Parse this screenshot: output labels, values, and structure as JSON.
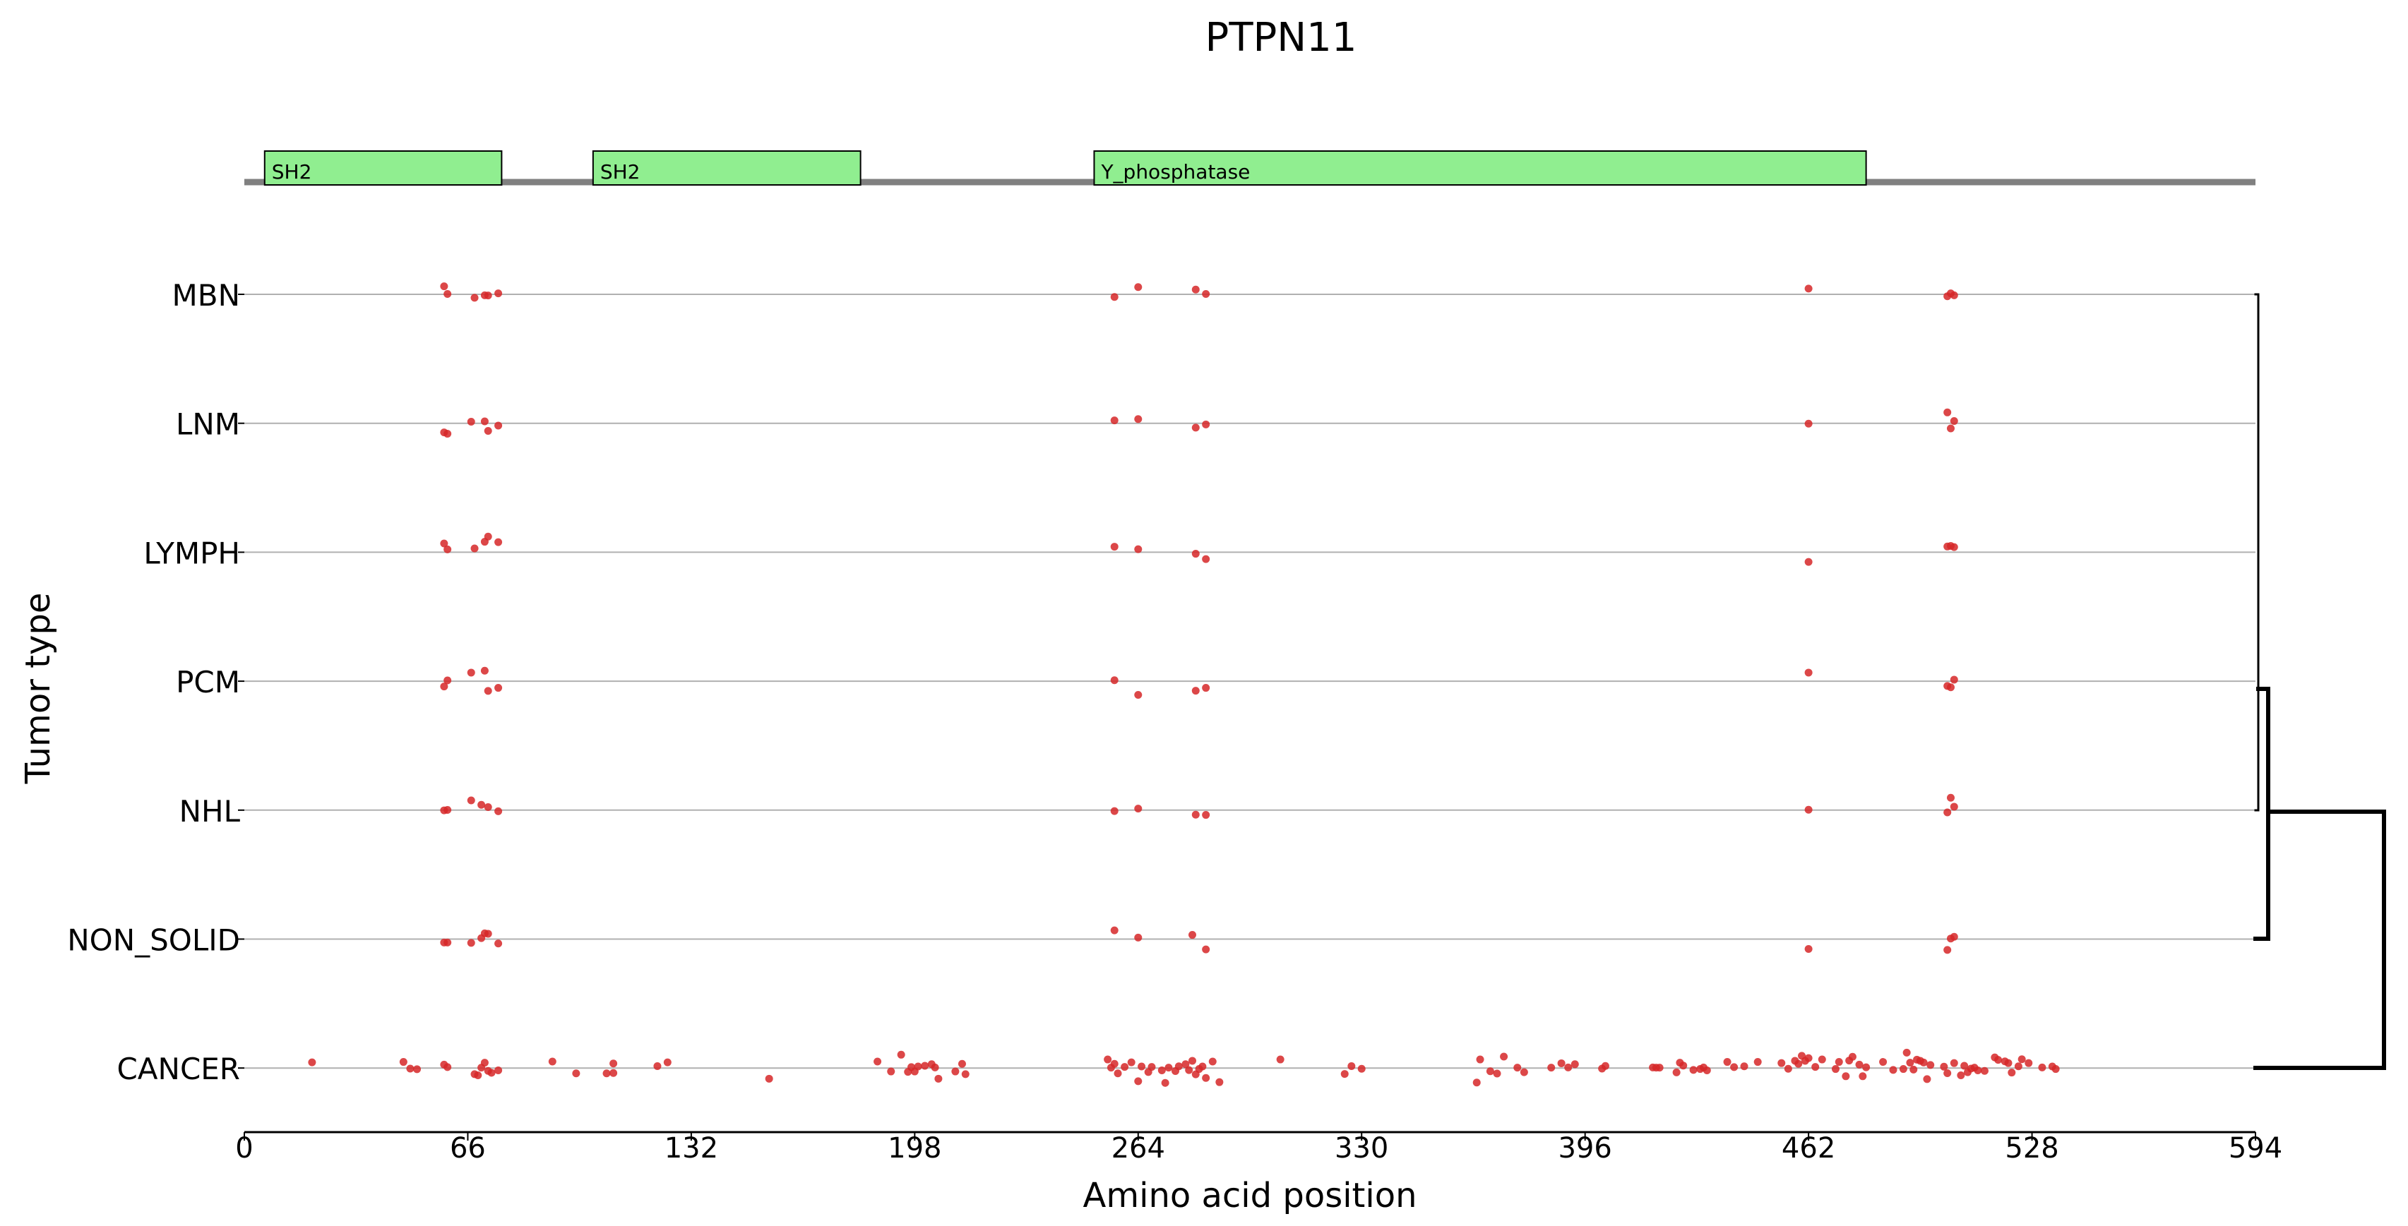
{
  "chart_data": {
    "type": "scatter",
    "title": "PTPN11",
    "xlabel": "Amino acid position",
    "ylabel": "Tumor type",
    "xlim": [
      0,
      594
    ],
    "x_ticks": [
      0,
      66,
      132,
      198,
      264,
      330,
      396,
      462,
      528,
      594
    ],
    "grid": "horizontal lines at each tumor type",
    "marker_color": "#d62728",
    "protein_length": 594,
    "domains": [
      {
        "name": "SH2",
        "start": 6,
        "end": 76
      },
      {
        "name": "SH2",
        "start": 103,
        "end": 182
      },
      {
        "name": "Y_phosphatase",
        "start": 251,
        "end": 479
      }
    ],
    "domain_color": "#90ee90",
    "categories": [
      "MBN",
      "LNM",
      "LYMPH",
      "PCM",
      "NHL",
      "NON_SOLID",
      "CANCER"
    ],
    "series": [
      {
        "category": "MBN",
        "points": [
          [
            59,
            0.42
          ],
          [
            60,
            0.02
          ],
          [
            68,
            -0.18
          ],
          [
            71,
            -0.05
          ],
          [
            72,
            -0.06
          ],
          [
            75,
            0.05
          ],
          [
            257,
            -0.14
          ],
          [
            264,
            0.38
          ],
          [
            281,
            0.25
          ],
          [
            284,
            0.02
          ],
          [
            462,
            0.3
          ],
          [
            503,
            -0.1
          ],
          [
            504,
            0.05
          ],
          [
            505,
            -0.05
          ]
        ]
      },
      {
        "category": "LNM",
        "points": [
          [
            59,
            -0.48
          ],
          [
            60,
            -0.55
          ],
          [
            67,
            0.08
          ],
          [
            71,
            0.1
          ],
          [
            72,
            -0.4
          ],
          [
            75,
            -0.12
          ],
          [
            257,
            0.15
          ],
          [
            264,
            0.22
          ],
          [
            281,
            -0.23
          ],
          [
            284,
            -0.06
          ],
          [
            462,
            -0.02
          ],
          [
            503,
            0.57
          ],
          [
            504,
            -0.27
          ],
          [
            505,
            0.12
          ]
        ]
      },
      {
        "category": "LYMPH",
        "points": [
          [
            59,
            0.46
          ],
          [
            60,
            0.15
          ],
          [
            68,
            0.2
          ],
          [
            71,
            0.55
          ],
          [
            72,
            0.82
          ],
          [
            75,
            0.53
          ],
          [
            257,
            0.29
          ],
          [
            264,
            0.16
          ],
          [
            281,
            -0.08
          ],
          [
            284,
            -0.36
          ],
          [
            462,
            -0.51
          ],
          [
            503,
            0.3
          ],
          [
            504,
            0.33
          ],
          [
            505,
            0.27
          ]
        ]
      },
      {
        "category": "PCM",
        "points": [
          [
            59,
            -0.28
          ],
          [
            60,
            0.04
          ],
          [
            67,
            0.45
          ],
          [
            71,
            0.55
          ],
          [
            72,
            -0.51
          ],
          [
            75,
            -0.35
          ],
          [
            257,
            0.05
          ],
          [
            264,
            -0.72
          ],
          [
            281,
            -0.5
          ],
          [
            284,
            -0.35
          ],
          [
            462,
            0.45
          ],
          [
            503,
            -0.25
          ],
          [
            504,
            -0.32
          ],
          [
            505,
            0.08
          ]
        ]
      },
      {
        "category": "NHL",
        "points": [
          [
            59,
            -0.01
          ],
          [
            60,
            0.01
          ],
          [
            67,
            0.51
          ],
          [
            70,
            0.28
          ],
          [
            72,
            0.16
          ],
          [
            75,
            -0.06
          ],
          [
            257,
            -0.05
          ],
          [
            264,
            0.08
          ],
          [
            281,
            -0.24
          ],
          [
            284,
            -0.25
          ],
          [
            462,
            0.02
          ],
          [
            503,
            -0.12
          ],
          [
            504,
            0.65
          ],
          [
            505,
            0.18
          ]
        ]
      },
      {
        "category": "NON_SOLID",
        "points": [
          [
            59,
            -0.18
          ],
          [
            60,
            -0.18
          ],
          [
            67,
            -0.2
          ],
          [
            70,
            0.05
          ],
          [
            71,
            0.3
          ],
          [
            72,
            0.28
          ],
          [
            75,
            -0.23
          ],
          [
            257,
            0.46
          ],
          [
            264,
            0.08
          ],
          [
            280,
            0.22
          ],
          [
            284,
            -0.54
          ],
          [
            462,
            -0.52
          ],
          [
            503,
            -0.57
          ],
          [
            504,
            0.03
          ],
          [
            505,
            0.12
          ]
        ]
      },
      {
        "category": "CANCER",
        "points": [
          [
            20,
            0.3
          ],
          [
            47,
            0.32
          ],
          [
            49,
            -0.03
          ],
          [
            51,
            -0.06
          ],
          [
            59,
            0.18
          ],
          [
            60,
            0.05
          ],
          [
            68,
            -0.32
          ],
          [
            69,
            -0.38
          ],
          [
            70,
            0.02
          ],
          [
            71,
            0.28
          ],
          [
            72,
            -0.15
          ],
          [
            73,
            -0.25
          ],
          [
            75,
            -0.12
          ],
          [
            91,
            0.34
          ],
          [
            98,
            -0.28
          ],
          [
            107,
            -0.28
          ],
          [
            109,
            0.24
          ],
          [
            109,
            -0.26
          ],
          [
            122,
            0.1
          ],
          [
            125,
            0.3
          ],
          [
            155,
            -0.56
          ],
          [
            187,
            0.34
          ],
          [
            191,
            -0.18
          ],
          [
            194,
            0.7
          ],
          [
            196,
            -0.2
          ],
          [
            197,
            0.05
          ],
          [
            198,
            -0.18
          ],
          [
            199,
            0.08
          ],
          [
            201,
            0.12
          ],
          [
            203,
            0.2
          ],
          [
            204,
            0.03
          ],
          [
            205,
            -0.56
          ],
          [
            210,
            -0.18
          ],
          [
            212,
            0.22
          ],
          [
            213,
            -0.32
          ],
          [
            255,
            0.45
          ],
          [
            256,
            0.02
          ],
          [
            257,
            0.22
          ],
          [
            258,
            -0.28
          ],
          [
            260,
            0.06
          ],
          [
            262,
            0.3
          ],
          [
            264,
            -0.69
          ],
          [
            265,
            0.08
          ],
          [
            267,
            -0.21
          ],
          [
            268,
            0.06
          ],
          [
            271,
            -0.12
          ],
          [
            272,
            -0.78
          ],
          [
            273,
            0.02
          ],
          [
            275,
            -0.16
          ],
          [
            276,
            0.09
          ],
          [
            278,
            0.2
          ],
          [
            279,
            -0.11
          ],
          [
            280,
            0.38
          ],
          [
            281,
            -0.33
          ],
          [
            282,
            -0.05
          ],
          [
            283,
            0.08
          ],
          [
            284,
            -0.52
          ],
          [
            286,
            0.34
          ],
          [
            288,
            -0.74
          ],
          [
            306,
            0.45
          ],
          [
            325,
            -0.31
          ],
          [
            327,
            0.1
          ],
          [
            330,
            -0.04
          ],
          [
            364,
            -0.76
          ],
          [
            365,
            0.45
          ],
          [
            368,
            -0.17
          ],
          [
            370,
            -0.29
          ],
          [
            372,
            0.6
          ],
          [
            376,
            0.02
          ],
          [
            378,
            -0.22
          ],
          [
            386,
            0.02
          ],
          [
            389,
            0.25
          ],
          [
            391,
            0.03
          ],
          [
            393,
            0.2
          ],
          [
            401,
            -0.03
          ],
          [
            402,
            0.11
          ],
          [
            416,
            0.03
          ],
          [
            417,
            0.02
          ],
          [
            418,
            0.02
          ],
          [
            423,
            -0.23
          ],
          [
            424,
            0.28
          ],
          [
            425,
            0.13
          ],
          [
            428,
            -0.1
          ],
          [
            430,
            -0.05
          ],
          [
            431,
            0.03
          ],
          [
            432,
            -0.12
          ],
          [
            438,
            0.32
          ],
          [
            440,
            0.05
          ],
          [
            443,
            0.09
          ],
          [
            447,
            0.32
          ],
          [
            454,
            0.26
          ],
          [
            456,
            -0.04
          ],
          [
            458,
            0.38
          ],
          [
            459,
            0.22
          ],
          [
            460,
            0.64
          ],
          [
            461,
            0.38
          ],
          [
            462,
            0.52
          ],
          [
            464,
            0.06
          ],
          [
            466,
            0.45
          ],
          [
            470,
            -0.05
          ],
          [
            471,
            0.32
          ],
          [
            473,
            -0.43
          ],
          [
            474,
            0.39
          ],
          [
            475,
            0.59
          ],
          [
            477,
            0.18
          ],
          [
            478,
            -0.43
          ],
          [
            479,
            0.04
          ],
          [
            484,
            0.32
          ],
          [
            487,
            -0.1
          ],
          [
            490,
            -0.05
          ],
          [
            491,
            0.81
          ],
          [
            492,
            0.28
          ],
          [
            493,
            -0.08
          ],
          [
            494,
            0.44
          ],
          [
            495,
            0.38
          ],
          [
            496,
            0.29
          ],
          [
            497,
            -0.58
          ],
          [
            498,
            0.16
          ],
          [
            502,
            0.07
          ],
          [
            503,
            -0.27
          ],
          [
            505,
            0.26
          ],
          [
            507,
            -0.38
          ],
          [
            508,
            0.12
          ],
          [
            509,
            -0.22
          ],
          [
            510,
            -0.03
          ],
          [
            511,
            0.02
          ],
          [
            512,
            -0.12
          ],
          [
            514,
            -0.15
          ],
          [
            517,
            0.56
          ],
          [
            518,
            0.43
          ],
          [
            520,
            0.35
          ],
          [
            521,
            0.26
          ],
          [
            522,
            -0.24
          ],
          [
            524,
            0.09
          ],
          [
            525,
            0.46
          ],
          [
            527,
            0.26
          ],
          [
            531,
            0.03
          ],
          [
            534,
            0.08
          ],
          [
            535,
            -0.05
          ]
        ]
      }
    ],
    "dendrogram": "clustering tree on the right linking MBN, LNM, LYMPH, PCM, NHL and NON_SOLID before joining CANCER"
  }
}
